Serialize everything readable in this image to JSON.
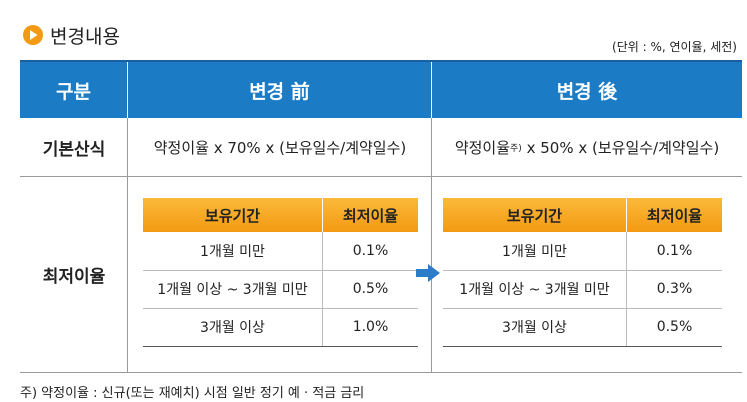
{
  "header": {
    "title": "변경내용",
    "unit": "(단위 : %, 연이율, 세전)"
  },
  "table": {
    "columns": [
      "구분",
      "변경 前",
      "변경 後"
    ],
    "rows": [
      {
        "label": "기본산식",
        "before": "약정이율 x 70% x (보유일수/계약일수)",
        "after": {
          "text": "약정이율",
          "note": "주)",
          "rest": "x 50% x (보유일수/계약일수)"
        }
      },
      {
        "label": "최저이율",
        "before": {
          "columns": [
            "보유기간",
            "최저이율"
          ],
          "rows": [
            [
              "1개월 미만",
              "0.1%"
            ],
            [
              "1개월 이상 ~ 3개월 미만",
              "0.5%"
            ],
            [
              "3개월 이상",
              "1.0%"
            ]
          ]
        },
        "after": {
          "columns": [
            "보유기간",
            "최저이율"
          ],
          "rows": [
            [
              "1개월 미만",
              "0.1%"
            ],
            [
              "1개월 이상 ~ 3개월 미만",
              "0.3%"
            ],
            [
              "3개월 이상",
              "0.5%"
            ]
          ]
        }
      }
    ]
  },
  "footnote": "주) 약정이율 : 신규(또는 재예치) 시점 일반 정기 예 · 적금 금리"
}
